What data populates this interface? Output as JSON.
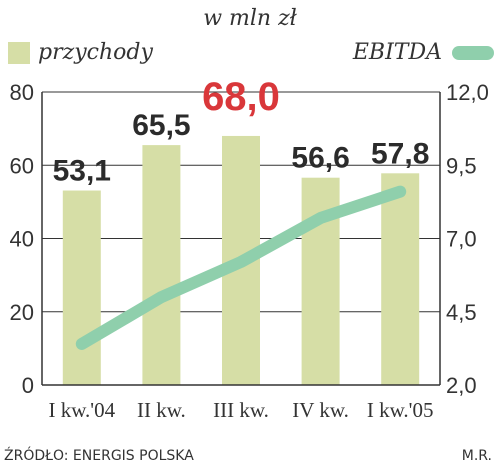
{
  "chart_data": {
    "type": "bar",
    "subtitle": "w mln zł",
    "categories": [
      "I kw.'04",
      "II kw.",
      "III kw.",
      "IV kw.",
      "I kw.'05"
    ],
    "series": [
      {
        "name": "przychody",
        "type": "bar",
        "axis": "left",
        "values": [
          53.1,
          65.5,
          68.0,
          56.6,
          57.8
        ],
        "labels": [
          "53,1",
          "65,5",
          "68,0",
          "56,6",
          "57,8"
        ],
        "highlight_index": 2,
        "color": "#d6dea6"
      },
      {
        "name": "EBITDA",
        "type": "line",
        "axis": "right",
        "values": [
          3.4,
          5.0,
          6.2,
          7.7,
          8.6
        ],
        "color": "#8fcfac"
      }
    ],
    "left_axis": {
      "ylim": [
        0,
        80
      ],
      "ticks": [
        "0",
        "20",
        "40",
        "60",
        "80"
      ],
      "tick_values": [
        0,
        20,
        40,
        60,
        80
      ]
    },
    "right_axis": {
      "ylim": [
        2.0,
        12.0
      ],
      "ticks": [
        "2,0",
        "4,5",
        "7,0",
        "9,5",
        "12,0"
      ],
      "tick_values": [
        2.0,
        4.5,
        7.0,
        9.5,
        12.0
      ]
    },
    "grid": true,
    "colors": {
      "label": "#2b2b2b",
      "highlight_label": "#d9373a",
      "axis": "#333333",
      "grid": "#333333"
    }
  },
  "source": "ŹRÓDŁO: ENERGIS POLSKA",
  "author": "M.R."
}
